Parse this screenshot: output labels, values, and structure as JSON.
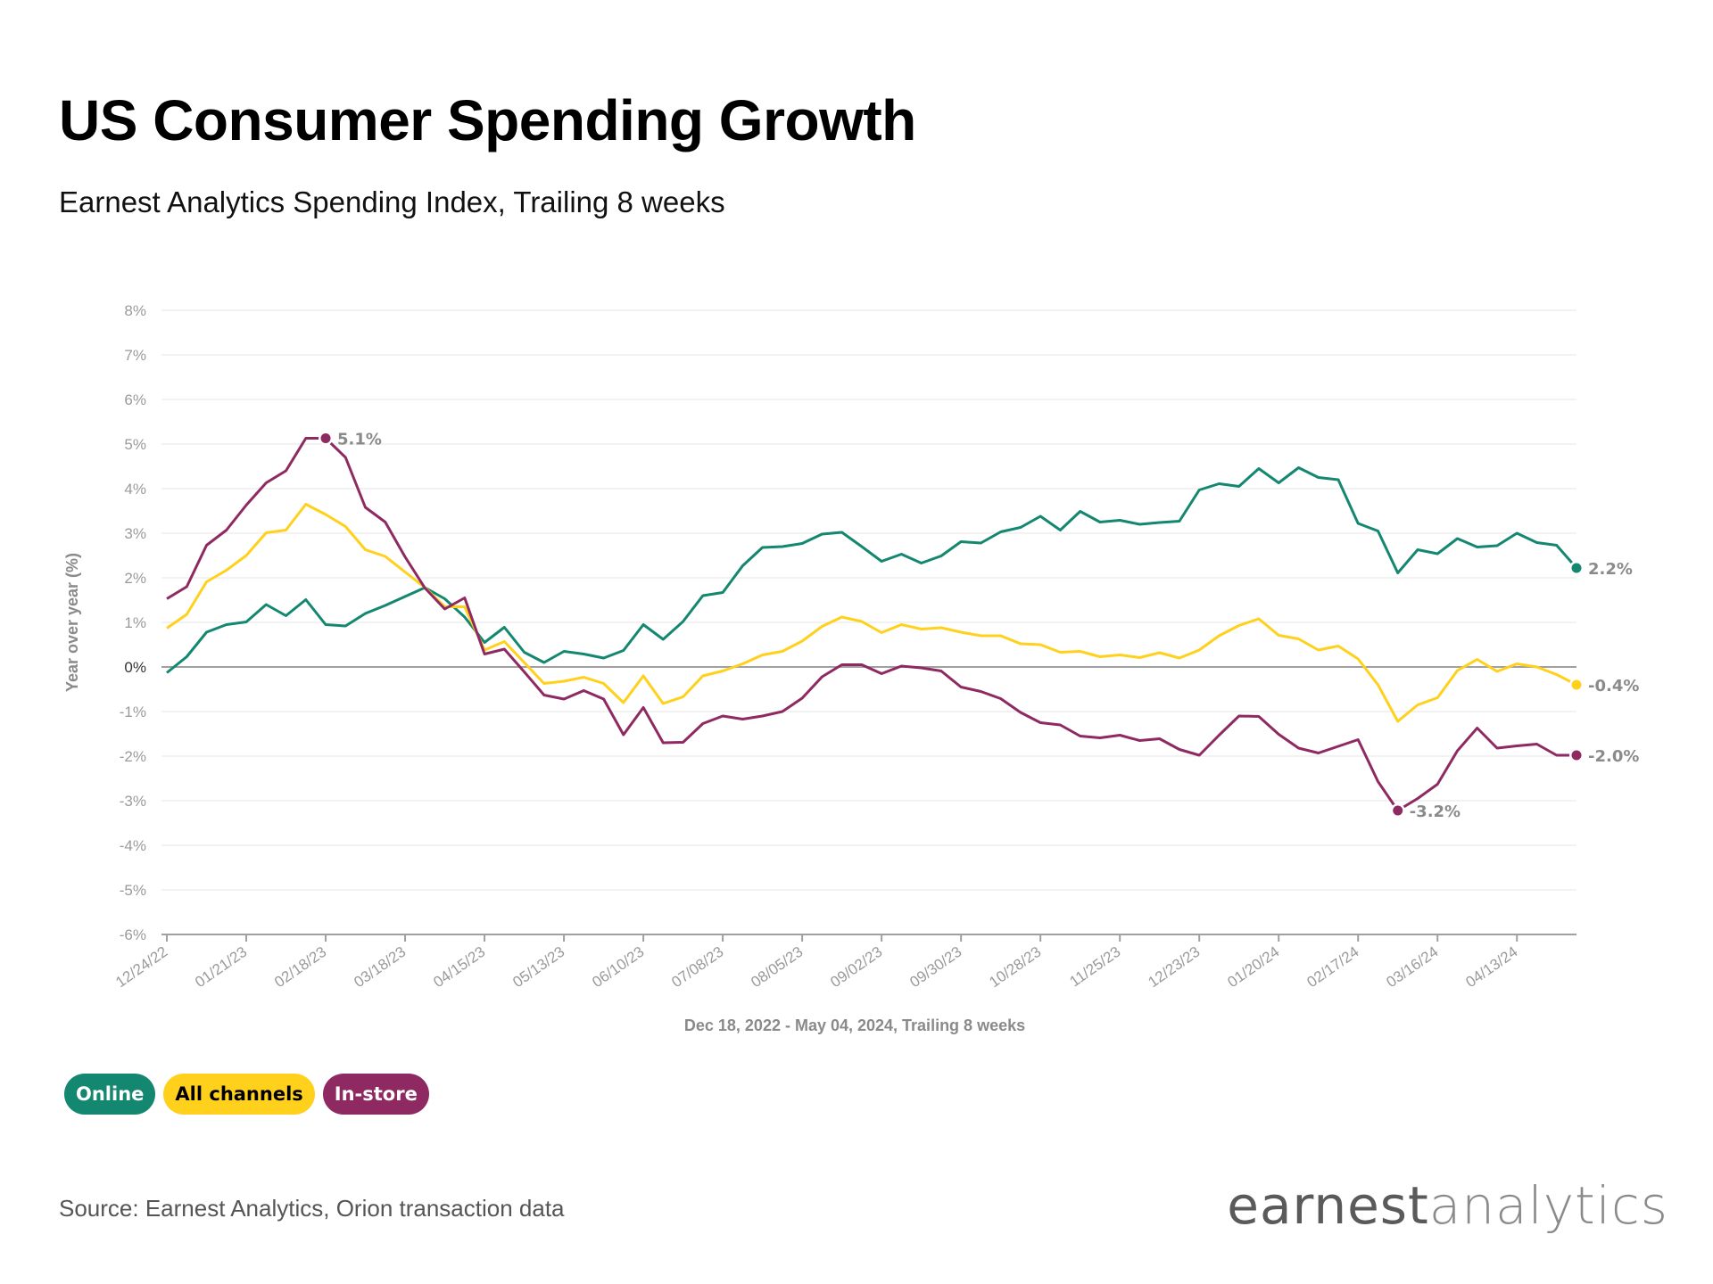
{
  "title": "US Consumer Spending Growth",
  "subtitle": "Earnest Analytics Spending Index, Trailing 8 weeks",
  "source": "Source: Earnest Analytics, Orion transaction data",
  "logo": {
    "part1": "earnest",
    "part2": "analytics"
  },
  "legend": [
    {
      "label": "Online",
      "color": "#13876f",
      "text_color": "#ffffff"
    },
    {
      "label": "All channels",
      "color": "#ffd11c",
      "text_color": "#000000"
    },
    {
      "label": "In-store",
      "color": "#8e2a61",
      "text_color": "#ffffff"
    }
  ],
  "chart_data": {
    "type": "line",
    "xlabel": "Dec 18, 2022 - May 04, 2024, Trailing 8 weeks",
    "ylabel": "Year over year (%)",
    "ylim": [
      -6,
      8
    ],
    "y_ticks": [
      "8%",
      "7%",
      "6%",
      "5%",
      "4%",
      "3%",
      "2%",
      "1%",
      "0%",
      "-1%",
      "-2%",
      "-3%",
      "-4%",
      "-5%",
      "-6%"
    ],
    "y_tick_values": [
      8,
      7,
      6,
      5,
      4,
      3,
      2,
      1,
      0,
      -1,
      -2,
      -3,
      -4,
      -5,
      -6
    ],
    "grid": true,
    "x_ticks": [
      "12/24/22",
      "01/21/23",
      "02/18/23",
      "03/18/23",
      "04/15/23",
      "05/13/23",
      "06/10/23",
      "07/08/23",
      "08/05/23",
      "09/02/23",
      "09/30/23",
      "10/28/23",
      "11/25/23",
      "12/23/23",
      "01/20/24",
      "02/17/24",
      "03/16/24",
      "04/13/24"
    ],
    "x": [
      "12/24/22",
      "12/31/22",
      "01/07/23",
      "01/14/23",
      "01/21/23",
      "01/28/23",
      "02/04/23",
      "02/11/23",
      "02/18/23",
      "02/25/23",
      "03/04/23",
      "03/11/23",
      "03/18/23",
      "03/25/23",
      "04/01/23",
      "04/08/23",
      "04/15/23",
      "04/22/23",
      "04/29/23",
      "05/06/23",
      "05/13/23",
      "05/20/23",
      "05/27/23",
      "06/03/23",
      "06/10/23",
      "06/17/23",
      "06/24/23",
      "07/01/23",
      "07/08/23",
      "07/15/23",
      "07/22/23",
      "07/29/23",
      "08/05/23",
      "08/12/23",
      "08/19/23",
      "08/26/23",
      "09/02/23",
      "09/09/23",
      "09/16/23",
      "09/23/23",
      "09/30/23",
      "10/07/23",
      "10/14/23",
      "10/21/23",
      "10/28/23",
      "11/04/23",
      "11/11/23",
      "11/18/23",
      "11/25/23",
      "12/02/23",
      "12/09/23",
      "12/16/23",
      "12/23/23",
      "12/30/23",
      "01/06/24",
      "01/13/24",
      "01/20/24",
      "01/27/24",
      "02/03/24",
      "02/10/24",
      "02/17/24",
      "02/24/24",
      "03/02/24",
      "03/09/24",
      "03/16/24",
      "03/23/24",
      "03/30/24",
      "04/06/24",
      "04/13/24",
      "04/20/24",
      "04/27/24",
      "05/04/24"
    ],
    "series": [
      {
        "name": "Online",
        "color": "#13876f",
        "values": [
          -0.13,
          0.23,
          0.78,
          0.95,
          1.01,
          1.4,
          1.15,
          1.51,
          0.95,
          0.92,
          1.2,
          1.38,
          1.58,
          1.78,
          1.53,
          1.12,
          0.55,
          0.89,
          0.33,
          0.1,
          0.35,
          0.29,
          0.2,
          0.37,
          0.95,
          0.62,
          1.02,
          1.6,
          1.67,
          2.27,
          2.68,
          2.7,
          2.77,
          2.98,
          3.02,
          2.7,
          2.37,
          2.53,
          2.33,
          2.49,
          2.81,
          2.78,
          3.03,
          3.13,
          3.38,
          3.07,
          3.49,
          3.25,
          3.29,
          3.2,
          3.24,
          3.27,
          3.97,
          4.11,
          4.05,
          4.45,
          4.13,
          4.47,
          4.25,
          4.2,
          3.22,
          3.05,
          2.11,
          2.63,
          2.54,
          2.88,
          2.69,
          2.72,
          3.0,
          2.79,
          2.73,
          2.22
        ]
      },
      {
        "name": "All channels",
        "color": "#ffd11c",
        "values": [
          0.87,
          1.18,
          1.91,
          2.17,
          2.5,
          3.01,
          3.07,
          3.65,
          3.42,
          3.15,
          2.63,
          2.48,
          2.13,
          1.78,
          1.35,
          1.35,
          0.38,
          0.57,
          0.1,
          -0.37,
          -0.32,
          -0.23,
          -0.37,
          -0.8,
          -0.2,
          -0.82,
          -0.67,
          -0.2,
          -0.09,
          0.07,
          0.27,
          0.35,
          0.58,
          0.91,
          1.12,
          1.02,
          0.77,
          0.95,
          0.85,
          0.88,
          0.78,
          0.7,
          0.7,
          0.52,
          0.5,
          0.33,
          0.35,
          0.23,
          0.27,
          0.21,
          0.32,
          0.2,
          0.38,
          0.7,
          0.93,
          1.08,
          0.71,
          0.63,
          0.38,
          0.47,
          0.18,
          -0.4,
          -1.22,
          -0.85,
          -0.69,
          -0.08,
          0.17,
          -0.1,
          0.07,
          0.0,
          -0.17,
          -0.4
        ]
      },
      {
        "name": "In-store",
        "color": "#8e2a61",
        "values": [
          1.53,
          1.8,
          2.73,
          3.07,
          3.63,
          4.13,
          4.4,
          5.13,
          5.13,
          4.7,
          3.58,
          3.25,
          2.47,
          1.77,
          1.3,
          1.55,
          0.29,
          0.4,
          -0.11,
          -0.63,
          -0.72,
          -0.53,
          -0.72,
          -1.52,
          -0.91,
          -1.7,
          -1.69,
          -1.27,
          -1.1,
          -1.17,
          -1.1,
          -1.0,
          -0.7,
          -0.22,
          0.05,
          0.05,
          -0.15,
          0.02,
          -0.02,
          -0.09,
          -0.45,
          -0.55,
          -0.71,
          -1.02,
          -1.25,
          -1.3,
          -1.55,
          -1.59,
          -1.53,
          -1.65,
          -1.61,
          -1.85,
          -1.98,
          -1.53,
          -1.1,
          -1.11,
          -1.51,
          -1.82,
          -1.93,
          -1.78,
          -1.63,
          -2.57,
          -3.22,
          -2.95,
          -2.63,
          -1.88,
          -1.37,
          -1.82,
          -1.77,
          -1.73,
          -1.98,
          -1.98
        ]
      }
    ],
    "annotations": [
      {
        "series": 2,
        "x": "02/18/23",
        "label": "5.1%"
      },
      {
        "series": 2,
        "x": "03/02/24",
        "label": "-3.2%"
      },
      {
        "series": 0,
        "x": "05/04/24",
        "label": "2.2%"
      },
      {
        "series": 1,
        "x": "05/04/24",
        "label": "-0.4%"
      },
      {
        "series": 2,
        "x": "05/04/24",
        "label": "-2.0%"
      }
    ]
  }
}
